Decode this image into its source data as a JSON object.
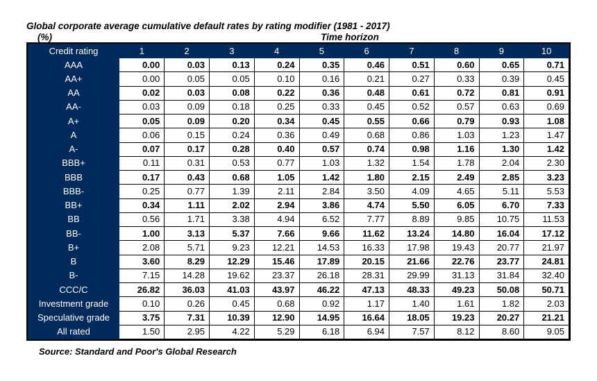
{
  "title": "Global corporate average cumulative default rates by rating modifier (1981 - 2017)",
  "unit_label": "(%)",
  "time_horizon_label": "Time horizon",
  "row_header": "Credit rating",
  "col_headers": [
    "1",
    "2",
    "3",
    "4",
    "5",
    "6",
    "7",
    "8",
    "9",
    "10"
  ],
  "colors": {
    "header_bg": "#002a5c",
    "header_fg": "#ffffff",
    "grid": "#000000",
    "bg": "#ffffff"
  },
  "rows": [
    {
      "label": "AAA",
      "bold": true,
      "vals": [
        "0.00",
        "0.03",
        "0.13",
        "0.24",
        "0.35",
        "0.46",
        "0.51",
        "0.60",
        "0.65",
        "0.71"
      ]
    },
    {
      "label": "AA+",
      "bold": false,
      "vals": [
        "0.00",
        "0.05",
        "0.05",
        "0.10",
        "0.16",
        "0.21",
        "0.27",
        "0.33",
        "0.39",
        "0.45"
      ]
    },
    {
      "label": "AA",
      "bold": true,
      "vals": [
        "0.02",
        "0.03",
        "0.08",
        "0.22",
        "0.36",
        "0.48",
        "0.61",
        "0.72",
        "0.81",
        "0.91"
      ]
    },
    {
      "label": "AA-",
      "bold": false,
      "vals": [
        "0.03",
        "0.09",
        "0.18",
        "0.25",
        "0.33",
        "0.45",
        "0.52",
        "0.57",
        "0.63",
        "0.69"
      ]
    },
    {
      "label": "A+",
      "bold": true,
      "vals": [
        "0.05",
        "0.09",
        "0.20",
        "0.34",
        "0.45",
        "0.55",
        "0.66",
        "0.79",
        "0.93",
        "1.08"
      ]
    },
    {
      "label": "A",
      "bold": false,
      "vals": [
        "0.06",
        "0.15",
        "0.24",
        "0.36",
        "0.49",
        "0.68",
        "0.86",
        "1.03",
        "1.23",
        "1.47"
      ]
    },
    {
      "label": "A-",
      "bold": true,
      "vals": [
        "0.07",
        "0.17",
        "0.28",
        "0.40",
        "0.57",
        "0.74",
        "0.98",
        "1.16",
        "1.30",
        "1.42"
      ]
    },
    {
      "label": "BBB+",
      "bold": false,
      "vals": [
        "0.11",
        "0.31",
        "0.53",
        "0.77",
        "1.03",
        "1.32",
        "1.54",
        "1.78",
        "2.04",
        "2.30"
      ]
    },
    {
      "label": "BBB",
      "bold": true,
      "vals": [
        "0.17",
        "0.43",
        "0.68",
        "1.05",
        "1.42",
        "1.80",
        "2.15",
        "2.49",
        "2.85",
        "3.23"
      ]
    },
    {
      "label": "BBB-",
      "bold": false,
      "vals": [
        "0.25",
        "0.77",
        "1.39",
        "2.11",
        "2.84",
        "3.50",
        "4.09",
        "4.65",
        "5.11",
        "5.53"
      ]
    },
    {
      "label": "BB+",
      "bold": true,
      "vals": [
        "0.34",
        "1.11",
        "2.02",
        "2.94",
        "3.86",
        "4.74",
        "5.50",
        "6.05",
        "6.70",
        "7.33"
      ]
    },
    {
      "label": "BB",
      "bold": false,
      "vals": [
        "0.56",
        "1.71",
        "3.38",
        "4.94",
        "6.52",
        "7.77",
        "8.89",
        "9.85",
        "10.75",
        "11.53"
      ]
    },
    {
      "label": "BB-",
      "bold": true,
      "vals": [
        "1.00",
        "3.13",
        "5.37",
        "7.66",
        "9.66",
        "11.62",
        "13.24",
        "14.80",
        "16.04",
        "17.12"
      ]
    },
    {
      "label": "B+",
      "bold": false,
      "vals": [
        "2.08",
        "5.71",
        "9.23",
        "12.21",
        "14.53",
        "16.33",
        "17.98",
        "19.43",
        "20.77",
        "21.97"
      ]
    },
    {
      "label": "B",
      "bold": true,
      "vals": [
        "3.60",
        "8.29",
        "12.29",
        "15.46",
        "17.89",
        "20.15",
        "21.66",
        "22.76",
        "23.77",
        "24.81"
      ]
    },
    {
      "label": "B-",
      "bold": false,
      "vals": [
        "7.15",
        "14.28",
        "19.62",
        "23.37",
        "26.18",
        "28.31",
        "29.99",
        "31.13",
        "31.84",
        "32.40"
      ]
    },
    {
      "label": "CCC/C",
      "bold": true,
      "vals": [
        "26.82",
        "36.03",
        "41.03",
        "43.97",
        "46.22",
        "47.13",
        "48.33",
        "49.23",
        "50.08",
        "50.71"
      ]
    },
    {
      "label": "Investment grade",
      "bold": false,
      "vals": [
        "0.10",
        "0.26",
        "0.45",
        "0.68",
        "0.92",
        "1.17",
        "1.40",
        "1.61",
        "1.82",
        "2.03"
      ]
    },
    {
      "label": "Speculative grade",
      "bold": true,
      "vals": [
        "3.75",
        "7.31",
        "10.39",
        "12.90",
        "14.95",
        "16.64",
        "18.05",
        "19.23",
        "20.27",
        "21.21"
      ]
    },
    {
      "label": "All rated",
      "bold": false,
      "vals": [
        "1.50",
        "2.95",
        "4.22",
        "5.29",
        "6.18",
        "6.94",
        "7.57",
        "8.12",
        "8.60",
        "9.05"
      ]
    }
  ],
  "source": "Source: Standard and Poor's Global Research"
}
